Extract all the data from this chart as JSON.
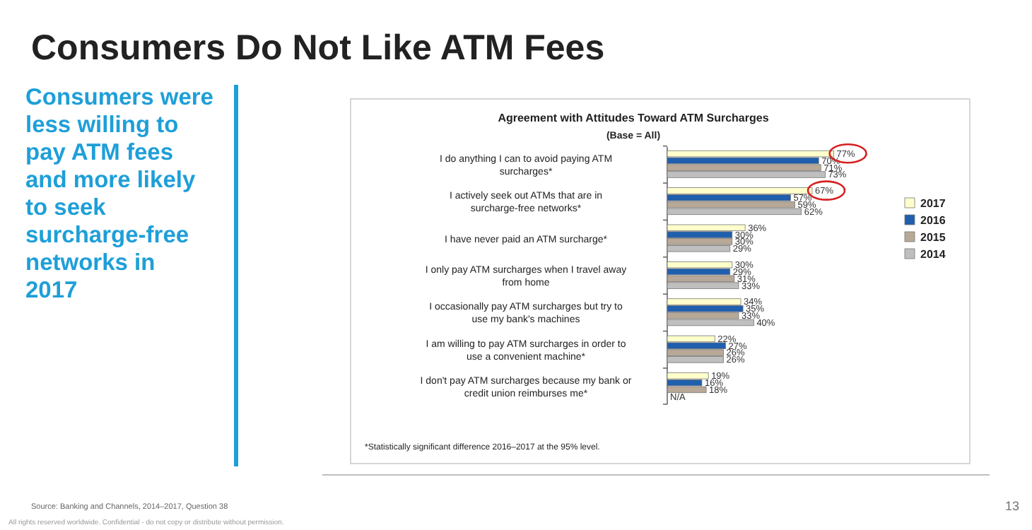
{
  "chart_data": {
    "type": "bar",
    "orientation": "horizontal",
    "title": "Consumers Do Not Like ATM Fees",
    "subtitle": "Agreement with Attitudes Toward ATM Surcharges",
    "categories": [
      "I do anything I can to avoid paying ATM surcharges*",
      "I actively seek out ATMs that are in surcharge-free networks*",
      "I have never paid an ATM surcharge*",
      "I only pay ATM surcharges when I travel away from home",
      "I occasionally pay ATM surcharges but try to use my bank's machines",
      "I am willing to pay ATM surcharges in order to use a convenient machine*",
      "I don't pay ATM surcharges because my bank or credit union  reimburses me*"
    ],
    "series": [
      {
        "name": "2017",
        "color": "#ffffcc",
        "values": [
          77,
          67,
          36,
          30,
          34,
          22,
          19
        ],
        "value_labels": [
          "77%",
          "67%",
          "36%",
          "30%",
          "34%",
          "22%",
          "19%"
        ]
      },
      {
        "name": "2016",
        "color": "#1f5fad",
        "values": [
          70,
          57,
          30,
          29,
          35,
          27,
          16
        ],
        "value_labels": [
          "70%",
          "57%",
          "30%",
          "29%",
          "35%",
          "27%",
          "16%"
        ]
      },
      {
        "name": "2015",
        "color": "#b8a898",
        "values": [
          71,
          59,
          30,
          31,
          33,
          26,
          18
        ],
        "value_labels": [
          "71%",
          "59%",
          "30%",
          "31%",
          "33%",
          "26%",
          "18%"
        ]
      },
      {
        "name": "2014",
        "color": "#bfbfbf",
        "values": [
          73,
          62,
          29,
          33,
          40,
          26,
          null
        ],
        "value_labels": [
          "73%",
          "62%",
          "29%",
          "33%",
          "40%",
          "26%",
          "N/A"
        ]
      }
    ],
    "legend": "right",
    "annotations": [
      "Consumers were less willing to pay ATM fees and more likely to seek surcharge-free networks in 2017",
      "(Base = All)",
      "*Statistically significant difference 2016–2017 at the 95% level.",
      "Source: Banking and Channels, 2014–2017, Question 38",
      "All rights reserved worldwide. Confidential - do not copy or distribute without permission.",
      "13"
    ]
  }
}
